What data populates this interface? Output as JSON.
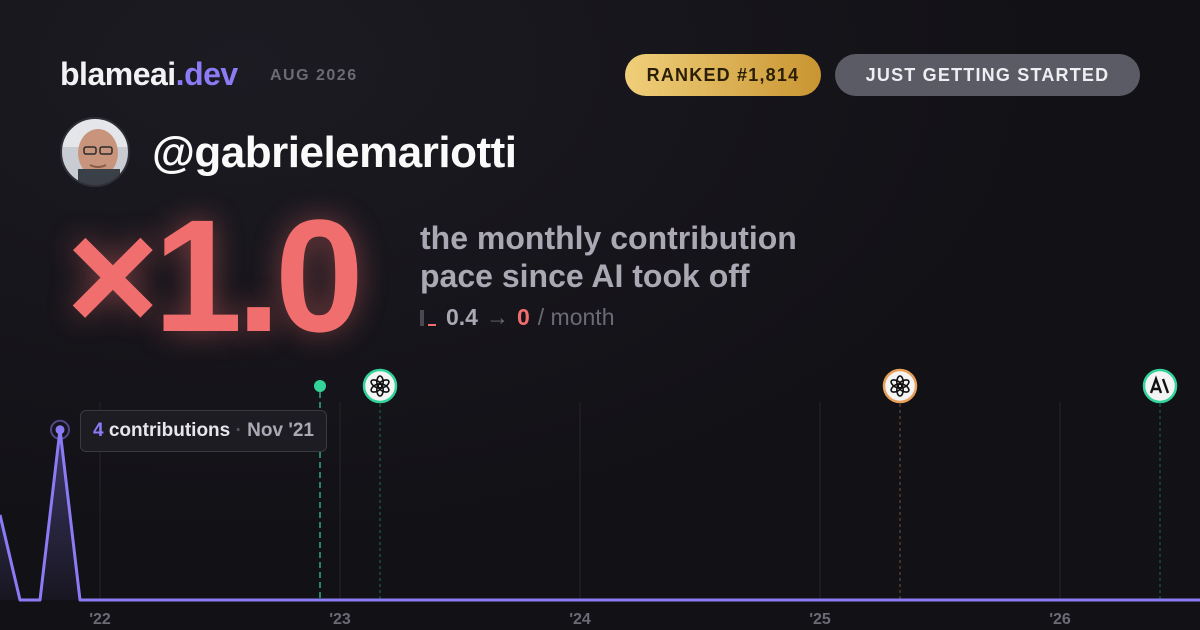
{
  "header": {
    "brand": "blameai",
    "brand_tld": ".dev",
    "period": "AUG 2026",
    "rank": "RANKED #1,814",
    "status": "JUST GETTING STARTED"
  },
  "profile": {
    "handle": "@gabrielemariotti"
  },
  "headline": {
    "multiplier": "×1.0",
    "description_line1": "the monthly contribution",
    "description_line2": "pace since AI took off",
    "before": 0.4,
    "arrow": "→",
    "after": 0,
    "unit": "/ month"
  },
  "chart_data": {
    "type": "line",
    "x": [
      "2021-08",
      "2021-09",
      "2021-10",
      "2021-11",
      "2021-12",
      "2022-01",
      "2022-02",
      "2022-03",
      "2022-04",
      "2022-05",
      "2022-06",
      "2022-07",
      "2022-08",
      "2022-09",
      "2022-10",
      "2022-11",
      "2022-12",
      "2023-01",
      "2023-02",
      "2023-03",
      "2023-04",
      "2023-05",
      "2023-06",
      "2023-07",
      "2023-08",
      "2023-09",
      "2023-10",
      "2023-11",
      "2023-12",
      "2024-01",
      "2024-02",
      "2024-03",
      "2024-04",
      "2024-05",
      "2024-06",
      "2024-07",
      "2024-08",
      "2024-09",
      "2024-10",
      "2024-11",
      "2024-12",
      "2025-01",
      "2025-02",
      "2025-03",
      "2025-04",
      "2025-05",
      "2025-06",
      "2025-07",
      "2025-08",
      "2025-09",
      "2025-10",
      "2025-11",
      "2025-12",
      "2026-01",
      "2026-02",
      "2026-03",
      "2026-04",
      "2026-05",
      "2026-06",
      "2026-07",
      "2026-08"
    ],
    "series": [
      {
        "color": "#8b7cf6",
        "values": [
          2,
          0,
          0,
          4,
          0,
          0,
          0,
          0,
          0,
          0,
          0,
          0,
          0,
          0,
          0,
          0,
          0,
          0,
          0,
          0,
          0,
          0,
          0,
          0,
          0,
          0,
          0,
          0,
          0,
          0,
          0,
          0,
          0,
          0,
          0,
          0,
          0,
          0,
          0,
          0,
          0,
          0,
          0,
          0,
          0,
          0,
          0,
          0,
          0,
          0,
          0,
          0,
          0,
          0,
          0,
          0,
          0,
          0,
          0,
          0,
          0
        ]
      }
    ],
    "xlim": [
      "2021-08",
      "2026-08"
    ],
    "xticks": [
      {
        "value": "2022-01",
        "label": "'22"
      },
      {
        "value": "2023-01",
        "label": "'23"
      },
      {
        "value": "2024-01",
        "label": "'24"
      },
      {
        "value": "2025-01",
        "label": "'25"
      },
      {
        "value": "2026-01",
        "label": "'26"
      }
    ],
    "ylim": [
      0,
      4.7
    ],
    "grid": true,
    "events": [
      {
        "x": "2022-12",
        "color": "#34d399"
      },
      {
        "x": "2023-03",
        "color": "#34d399"
      },
      {
        "x": "2025-05",
        "color": "#e8a15a"
      },
      {
        "x": "2026-06",
        "color": "#34d399"
      }
    ],
    "tooltip": {
      "unit": "contributions",
      "label": "Nov '21"
    }
  }
}
